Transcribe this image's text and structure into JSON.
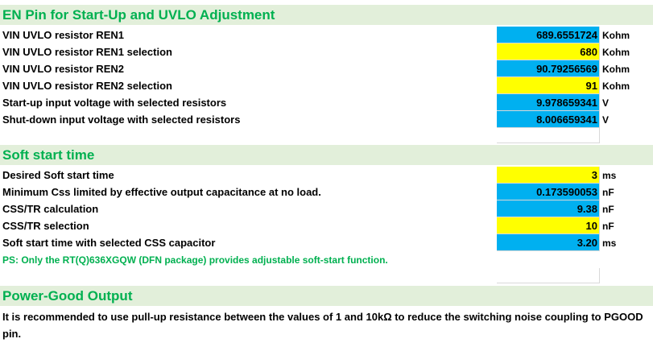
{
  "en_section": {
    "title": "EN Pin for Start-Up and UVLO Adjustment",
    "rows": [
      {
        "label": "VIN UVLO resistor REN1",
        "value": "689.6551724",
        "unit": "Kohm",
        "kind": "calc"
      },
      {
        "label": "VIN UVLO resistor REN1 selection",
        "value": "680",
        "unit": "Kohm",
        "kind": "input"
      },
      {
        "label": "VIN UVLO resistor REN2",
        "value": "90.79256569",
        "unit": "Kohm",
        "kind": "calc"
      },
      {
        "label": "VIN UVLO resistor REN2 selection",
        "value": "91",
        "unit": "Kohm",
        "kind": "input"
      },
      {
        "label": "Start-up input voltage with selected resistors",
        "value": "9.978659341",
        "unit": "V",
        "kind": "calc"
      },
      {
        "label": "Shut-down input voltage with selected resistors",
        "value": "8.006659341",
        "unit": "V",
        "kind": "calc"
      }
    ]
  },
  "ss_section": {
    "title": "Soft start time",
    "rows": [
      {
        "label": "Desired Soft start time",
        "value": "3",
        "unit": "ms",
        "kind": "input"
      },
      {
        "label": "Minimum Css limited by effective output capacitance at no load.",
        "value": "0.173590053",
        "unit": "nF",
        "kind": "calc"
      },
      {
        "label": "CSS/TR calculation",
        "value": "9.38",
        "unit": "nF",
        "kind": "calc"
      },
      {
        "label": "CSS/TR selection",
        "value": "10",
        "unit": "nF",
        "kind": "input"
      },
      {
        "label": "Soft start time with selected CSS capacitor",
        "value": "3.20",
        "unit": "ms",
        "kind": "calc"
      }
    ],
    "note": "PS: Only the RT(Q)636XGQW (DFN package)  provides adjustable soft-start function."
  },
  "pg_section": {
    "title": "Power-Good Output",
    "text": "It is recommended to use pull-up resistance between the values of 1 and 10kΩ to reduce the switching noise coupling to PGOOD pin."
  },
  "colors": {
    "section_band": "#e2efda",
    "section_title": "#00b050",
    "calc_cell": "#00b0f0",
    "input_cell": "#ffff00",
    "note_text": "#00b050"
  }
}
